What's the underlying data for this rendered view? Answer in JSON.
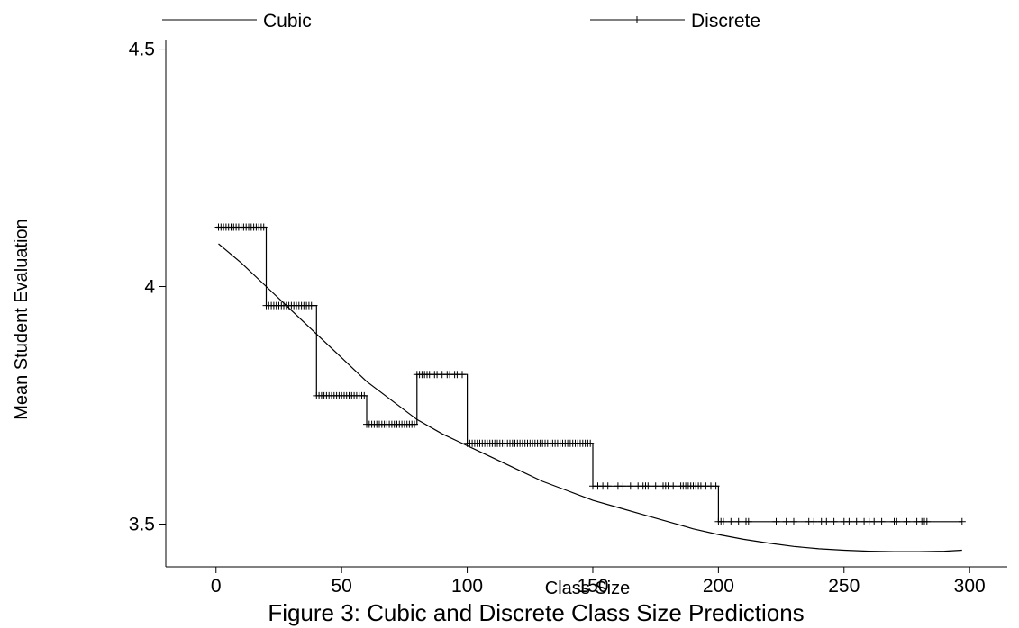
{
  "chart_data": {
    "type": "line",
    "title": "",
    "xlabel": "Class Size",
    "ylabel": "Mean Student Evaluation",
    "caption": "Figure 3: Cubic and Discrete Class Size Predictions",
    "xlim": [
      -20,
      315
    ],
    "ylim": [
      3.41,
      4.52
    ],
    "xticks": [
      0,
      50,
      100,
      150,
      200,
      250,
      300
    ],
    "yticks": [
      3.5,
      4,
      4.5
    ],
    "ytick_labels": [
      "3.5",
      "4",
      "4.5"
    ],
    "grid": false,
    "legend_position": "top",
    "series": [
      {
        "name": "Cubic",
        "marker": "none",
        "x": [
          1,
          10,
          20,
          30,
          40,
          50,
          60,
          70,
          80,
          90,
          100,
          110,
          120,
          130,
          140,
          150,
          160,
          170,
          180,
          190,
          200,
          210,
          220,
          230,
          240,
          250,
          260,
          270,
          280,
          290,
          297
        ],
        "y": [
          4.09,
          4.05,
          4.0,
          3.95,
          3.9,
          3.85,
          3.8,
          3.76,
          3.72,
          3.69,
          3.665,
          3.64,
          3.615,
          3.59,
          3.57,
          3.55,
          3.535,
          3.52,
          3.505,
          3.49,
          3.478,
          3.468,
          3.46,
          3.453,
          3.448,
          3.445,
          3.443,
          3.442,
          3.442,
          3.443,
          3.445
        ]
      },
      {
        "name": "Discrete",
        "marker": "plus",
        "steps": [
          {
            "x0": 0,
            "x1": 20,
            "y": 4.125
          },
          {
            "x0": 20,
            "x1": 40,
            "y": 3.96
          },
          {
            "x0": 40,
            "x1": 60,
            "y": 3.77
          },
          {
            "x0": 60,
            "x1": 80,
            "y": 3.71
          },
          {
            "x0": 80,
            "x1": 100,
            "y": 3.815
          },
          {
            "x0": 100,
            "x1": 150,
            "y": 3.67
          },
          {
            "x0": 150,
            "x1": 200,
            "y": 3.58
          },
          {
            "x0": 200,
            "x1": 297,
            "y": 3.505
          }
        ],
        "marker_x": [
          1,
          2,
          3,
          4,
          5,
          6,
          7,
          8,
          9,
          10,
          11,
          12,
          13,
          14,
          15,
          16,
          17,
          18,
          19,
          20,
          21,
          22,
          23,
          24,
          25,
          26,
          27,
          28,
          29,
          30,
          31,
          32,
          33,
          34,
          35,
          36,
          37,
          38,
          39,
          40,
          41,
          42,
          43,
          44,
          45,
          46,
          47,
          48,
          49,
          50,
          51,
          52,
          53,
          54,
          55,
          56,
          57,
          58,
          59,
          60,
          61,
          62,
          63,
          64,
          65,
          66,
          67,
          68,
          69,
          70,
          71,
          72,
          73,
          74,
          75,
          76,
          77,
          78,
          79,
          80,
          81,
          82,
          83,
          84,
          85,
          87,
          88,
          90,
          92,
          93,
          95,
          96,
          98,
          100,
          101,
          102,
          103,
          104,
          105,
          106,
          107,
          108,
          109,
          110,
          111,
          112,
          113,
          114,
          115,
          116,
          117,
          118,
          119,
          120,
          121,
          122,
          123,
          124,
          125,
          126,
          127,
          128,
          129,
          130,
          131,
          132,
          133,
          134,
          135,
          136,
          137,
          138,
          139,
          140,
          141,
          142,
          143,
          144,
          145,
          146,
          147,
          148,
          149,
          150,
          152,
          154,
          156,
          160,
          162,
          165,
          168,
          170,
          171,
          172,
          175,
          178,
          179,
          180,
          182,
          185,
          186,
          187,
          188,
          189,
          190,
          191,
          192,
          193,
          195,
          197,
          199,
          200,
          201,
          202,
          205,
          208,
          211,
          212,
          223,
          227,
          230,
          236,
          238,
          241,
          243,
          246,
          250,
          252,
          255,
          258,
          260,
          262,
          265,
          270,
          271,
          275,
          279,
          281,
          282,
          283,
          297
        ]
      }
    ]
  }
}
